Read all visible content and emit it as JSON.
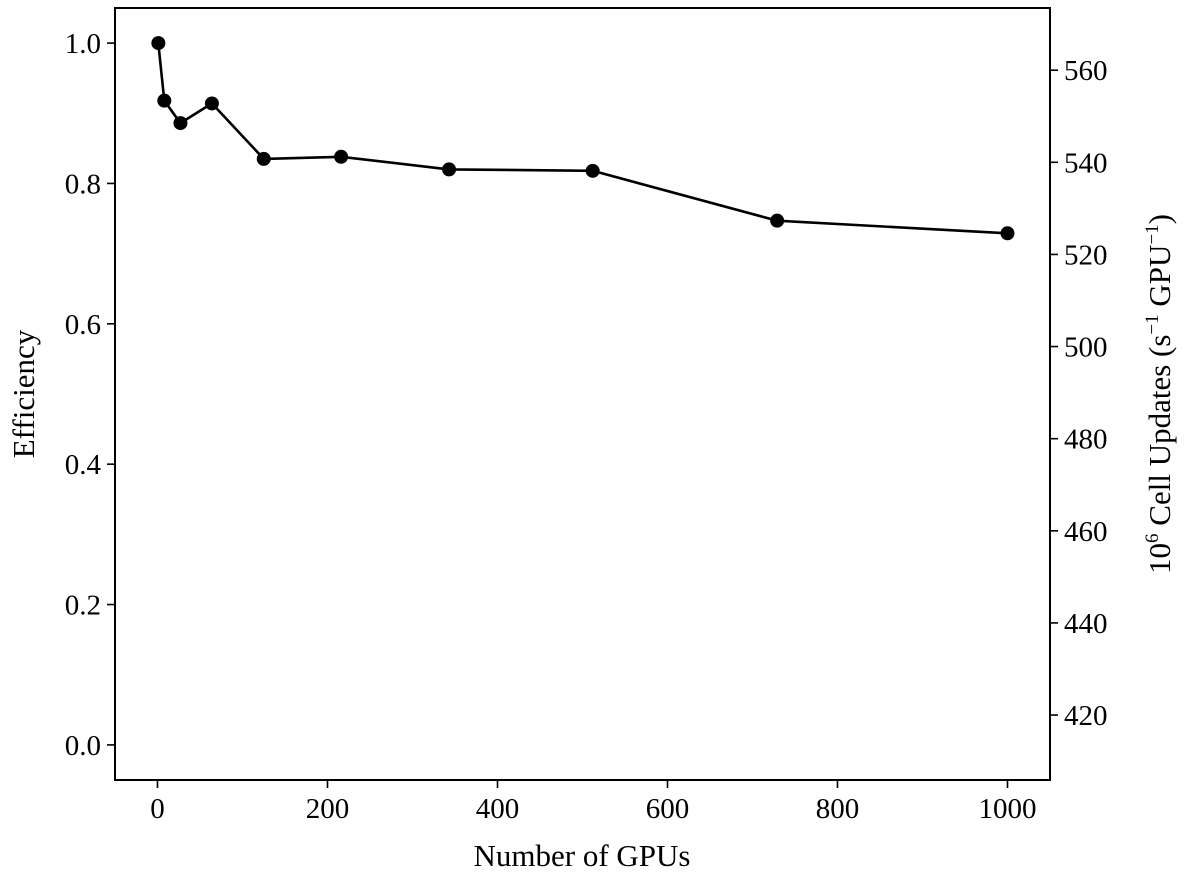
{
  "chart_data": {
    "type": "line",
    "title": "",
    "xlabel": "Number of GPUs",
    "ylabel": "Efficiency",
    "y2label": {
      "prefix": "10",
      "prefix_exp": "6",
      "main": " Cell Updates ",
      "open_paren": "(",
      "unit_s": "s",
      "unit_s_exp": "−1",
      "unit_gpu": " GPU",
      "unit_gpu_exp": "−1",
      "close_paren": ")"
    },
    "xlim": [
      -50,
      1050
    ],
    "ylim": [
      -0.05,
      1.05
    ],
    "y2lim": [
      405.9,
      573.5
    ],
    "xticks": [
      0,
      200,
      400,
      600,
      800,
      1000
    ],
    "yticks": [
      "0.0",
      "0.2",
      "0.4",
      "0.6",
      "0.8",
      "1.0"
    ],
    "y2ticks": [
      420,
      440,
      460,
      480,
      500,
      520,
      540,
      560
    ],
    "grid": false,
    "series": [
      {
        "x": [
          1,
          8,
          27,
          64,
          125,
          216,
          343,
          512,
          729,
          1000
        ],
        "y": [
          1.0,
          0.918,
          0.886,
          0.914,
          0.835,
          0.838,
          0.82,
          0.818,
          0.747,
          0.729
        ],
        "color": "#000000",
        "marker": "circle"
      }
    ]
  }
}
